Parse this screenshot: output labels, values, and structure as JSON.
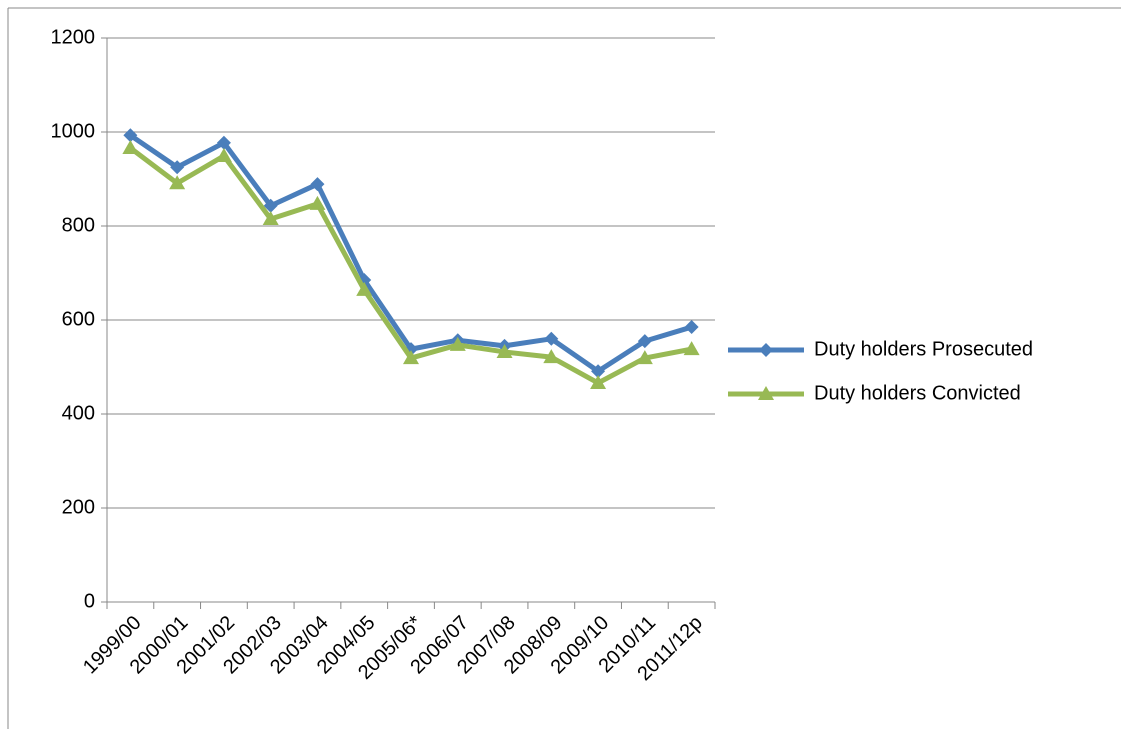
{
  "chart_data": {
    "type": "line",
    "categories": [
      "1999/00",
      "2000/01",
      "2001/02",
      "2002/03",
      "2003/04",
      "2004/05",
      "2005/06*",
      "2006/07",
      "2007/08",
      "2008/09",
      "2009/10",
      "2010/11",
      "2011/12p"
    ],
    "series": [
      {
        "name": "Duty holders Prosecuted",
        "color": "#4a7ebb",
        "marker": "diamond",
        "values": [
          993,
          925,
          977,
          843,
          889,
          685,
          538,
          557,
          545,
          560,
          491,
          555,
          585
        ]
      },
      {
        "name": "Duty holders Convicted",
        "color": "#98b954",
        "marker": "triangle",
        "values": [
          966,
          891,
          949,
          815,
          847,
          664,
          519,
          547,
          532,
          521,
          466,
          519,
          538
        ]
      }
    ],
    "ylim": [
      0,
      1200
    ],
    "yticks": [
      0,
      200,
      400,
      600,
      800,
      1000,
      1200
    ],
    "grid": true,
    "legend": "right"
  }
}
